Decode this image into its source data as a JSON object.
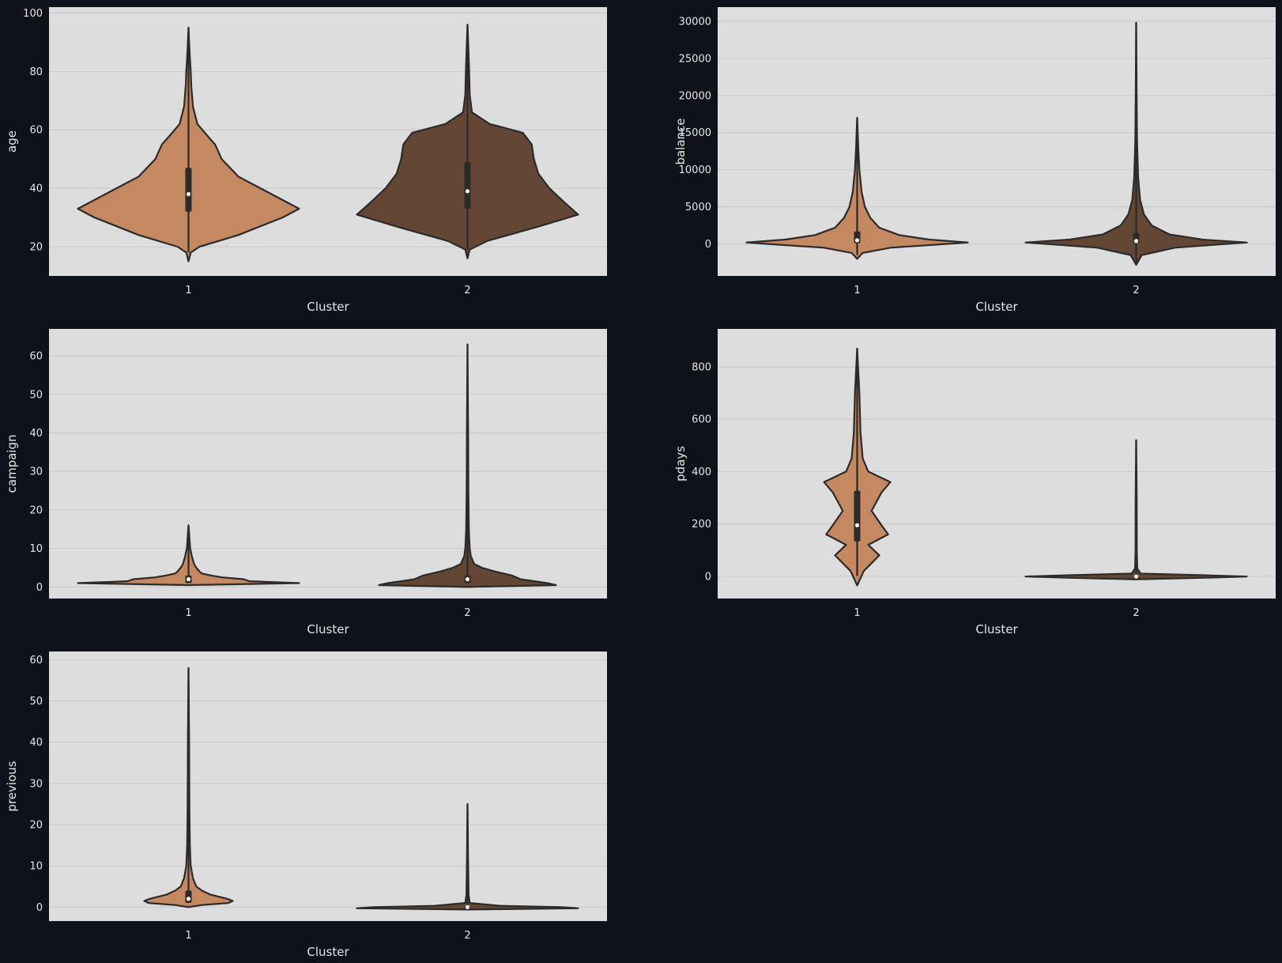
{
  "figure": {
    "background": "#0e121b",
    "panel_background": "#dddddd",
    "grid_color": "#cbcbcb",
    "outline_color": "#2b2b2b",
    "median_color": "#ffffff"
  },
  "chart_data": [
    {
      "type": "violin",
      "xlabel": "Cluster",
      "ylabel": "age",
      "categories": [
        "1",
        "2"
      ],
      "colors": [
        "#c58961",
        "#634634"
      ],
      "ylim": [
        10,
        102
      ],
      "yticks": [
        20,
        40,
        60,
        80,
        100
      ],
      "ytick_labels": [
        "20",
        "40",
        "60",
        "80",
        "100"
      ],
      "grid": true,
      "series": [
        {
          "category": "1",
          "min": 18,
          "q1": 32,
          "median": 38,
          "q3": 47,
          "whisker_high": 69,
          "max": 95,
          "profile": [
            [
              15,
              0
            ],
            [
              18,
              0.02
            ],
            [
              20,
              0.1
            ],
            [
              24,
              0.45
            ],
            [
              30,
              0.85
            ],
            [
              33,
              1.0
            ],
            [
              38,
              0.75
            ],
            [
              44,
              0.45
            ],
            [
              50,
              0.3
            ],
            [
              55,
              0.24
            ],
            [
              58,
              0.17
            ],
            [
              62,
              0.08
            ],
            [
              68,
              0.04
            ],
            [
              75,
              0.025
            ],
            [
              80,
              0.02
            ],
            [
              85,
              0.012
            ],
            [
              90,
              0.006
            ],
            [
              95,
              0
            ]
          ]
        },
        {
          "category": "2",
          "min": 19,
          "q1": 33,
          "median": 39,
          "q3": 49,
          "whisker_high": 70,
          "max": 96,
          "profile": [
            [
              16,
              0
            ],
            [
              19,
              0.02
            ],
            [
              22,
              0.18
            ],
            [
              27,
              0.65
            ],
            [
              31,
              1.0
            ],
            [
              35,
              0.88
            ],
            [
              40,
              0.74
            ],
            [
              45,
              0.64
            ],
            [
              50,
              0.6
            ],
            [
              55,
              0.58
            ],
            [
              59,
              0.5
            ],
            [
              62,
              0.2
            ],
            [
              66,
              0.04
            ],
            [
              72,
              0.02
            ],
            [
              80,
              0.015
            ],
            [
              88,
              0.008
            ],
            [
              96,
              0
            ]
          ]
        }
      ]
    },
    {
      "type": "violin",
      "xlabel": "Cluster",
      "ylabel": "balance",
      "categories": [
        "1",
        "2"
      ],
      "colors": [
        "#c58961",
        "#634634"
      ],
      "ylim": [
        -4300,
        31900
      ],
      "yticks": [
        0,
        5000,
        10000,
        15000,
        20000,
        25000,
        30000
      ],
      "ytick_labels": [
        "0",
        "5000",
        "10000",
        "15000",
        "20000",
        "25000",
        "30000"
      ],
      "grid": true,
      "series": [
        {
          "category": "1",
          "min": -1500,
          "q1": 100,
          "median": 500,
          "q3": 1700,
          "whisker_high": 4000,
          "max": 17000,
          "profile": [
            [
              -2000,
              0
            ],
            [
              -1200,
              0.05
            ],
            [
              -500,
              0.3
            ],
            [
              0,
              0.8
            ],
            [
              200,
              1.0
            ],
            [
              600,
              0.65
            ],
            [
              1200,
              0.38
            ],
            [
              2200,
              0.2
            ],
            [
              3500,
              0.12
            ],
            [
              5000,
              0.07
            ],
            [
              7000,
              0.04
            ],
            [
              10000,
              0.02
            ],
            [
              13000,
              0.01
            ],
            [
              17000,
              0
            ]
          ]
        },
        {
          "category": "2",
          "min": -2500,
          "q1": 100,
          "median": 400,
          "q3": 1500,
          "whisker_high": 3500,
          "max": 29800,
          "profile": [
            [
              -2800,
              0
            ],
            [
              -1500,
              0.05
            ],
            [
              -500,
              0.35
            ],
            [
              0,
              0.8
            ],
            [
              200,
              1.0
            ],
            [
              600,
              0.6
            ],
            [
              1300,
              0.3
            ],
            [
              2500,
              0.14
            ],
            [
              4000,
              0.07
            ],
            [
              6000,
              0.035
            ],
            [
              9000,
              0.018
            ],
            [
              14000,
              0.008
            ],
            [
              20000,
              0.004
            ],
            [
              29800,
              0
            ]
          ]
        }
      ]
    },
    {
      "type": "violin",
      "xlabel": "Cluster",
      "ylabel": "campaign",
      "categories": [
        "1",
        "2"
      ],
      "colors": [
        "#c58961",
        "#634634"
      ],
      "ylim": [
        -3,
        67
      ],
      "yticks": [
        0,
        10,
        20,
        30,
        40,
        50,
        60
      ],
      "ytick_labels": [
        "0",
        "10",
        "20",
        "30",
        "40",
        "50",
        "60"
      ],
      "grid": true,
      "series": [
        {
          "category": "1",
          "min": 1,
          "q1": 1,
          "median": 2,
          "q3": 3,
          "whisker_high": 5,
          "max": 16,
          "profile": [
            [
              0.5,
              0
            ],
            [
              1,
              1.0
            ],
            [
              1.5,
              0.55
            ],
            [
              2,
              0.5
            ],
            [
              2.5,
              0.3
            ],
            [
              3,
              0.2
            ],
            [
              3.5,
              0.12
            ],
            [
              4,
              0.1
            ],
            [
              5,
              0.07
            ],
            [
              6,
              0.05
            ],
            [
              7,
              0.04
            ],
            [
              8,
              0.03
            ],
            [
              10,
              0.015
            ],
            [
              13,
              0.008
            ],
            [
              16,
              0
            ]
          ]
        },
        {
          "category": "2",
          "min": 1,
          "q1": 1,
          "median": 2,
          "q3": 3,
          "whisker_high": 6,
          "max": 63,
          "profile": [
            [
              0,
              0
            ],
            [
              0.5,
              0.8
            ],
            [
              1,
              0.72
            ],
            [
              2,
              0.48
            ],
            [
              3,
              0.4
            ],
            [
              4,
              0.25
            ],
            [
              5,
              0.13
            ],
            [
              6,
              0.06
            ],
            [
              8,
              0.03
            ],
            [
              10,
              0.02
            ],
            [
              15,
              0.012
            ],
            [
              25,
              0.008
            ],
            [
              40,
              0.006
            ],
            [
              63,
              0
            ]
          ]
        }
      ]
    },
    {
      "type": "violin",
      "xlabel": "Cluster",
      "ylabel": "pdays",
      "categories": [
        "1",
        "2"
      ],
      "colors": [
        "#c58961",
        "#634634"
      ],
      "ylim": [
        -85,
        945
      ],
      "yticks": [
        0,
        200,
        400,
        600,
        800
      ],
      "ytick_labels": [
        "0",
        "200",
        "400",
        "600",
        "800"
      ],
      "grid": true,
      "series": [
        {
          "category": "1",
          "min": 1,
          "q1": 133,
          "median": 195,
          "q3": 327,
          "whisker_high": 600,
          "max": 870,
          "profile": [
            [
              -35,
              0
            ],
            [
              20,
              0.06
            ],
            [
              80,
              0.2
            ],
            [
              120,
              0.1
            ],
            [
              160,
              0.28
            ],
            [
              195,
              0.22
            ],
            [
              250,
              0.13
            ],
            [
              320,
              0.22
            ],
            [
              360,
              0.3
            ],
            [
              400,
              0.1
            ],
            [
              450,
              0.05
            ],
            [
              550,
              0.03
            ],
            [
              700,
              0.02
            ],
            [
              870,
              0
            ]
          ]
        },
        {
          "category": "2",
          "min": -1,
          "q1": -1,
          "median": -1,
          "q3": -1,
          "whisker_high": -1,
          "max": 520,
          "profile": [
            [
              -12,
              0
            ],
            [
              -6,
              0.6
            ],
            [
              -1,
              1.0
            ],
            [
              4,
              0.6
            ],
            [
              10,
              0.04
            ],
            [
              30,
              0.01
            ],
            [
              100,
              0.006
            ],
            [
              300,
              0.005
            ],
            [
              520,
              0
            ]
          ]
        }
      ]
    },
    {
      "type": "violin",
      "xlabel": "Cluster",
      "ylabel": "previous",
      "categories": [
        "1",
        "2"
      ],
      "colors": [
        "#c58961",
        "#634634"
      ],
      "ylim": [
        -3.4,
        62
      ],
      "yticks": [
        0,
        10,
        20,
        30,
        40,
        50,
        60
      ],
      "ytick_labels": [
        "0",
        "10",
        "20",
        "30",
        "40",
        "50",
        "60"
      ],
      "grid": true,
      "series": [
        {
          "category": "1",
          "min": 1,
          "q1": 1,
          "median": 2,
          "q3": 4,
          "whisker_high": 7,
          "max": 58,
          "profile": [
            [
              0,
              0
            ],
            [
              0.5,
              0.12
            ],
            [
              1,
              0.36
            ],
            [
              1.5,
              0.4
            ],
            [
              2,
              0.35
            ],
            [
              3,
              0.2
            ],
            [
              4,
              0.12
            ],
            [
              5,
              0.07
            ],
            [
              7,
              0.04
            ],
            [
              10,
              0.02
            ],
            [
              15,
              0.012
            ],
            [
              25,
              0.008
            ],
            [
              40,
              0.006
            ],
            [
              58,
              0
            ]
          ]
        },
        {
          "category": "2",
          "min": 0,
          "q1": 0,
          "median": 0,
          "q3": 0,
          "whisker_high": 0,
          "max": 25,
          "profile": [
            [
              -0.6,
              0
            ],
            [
              -0.3,
              1.0
            ],
            [
              0,
              0.85
            ],
            [
              0.3,
              0.3
            ],
            [
              1,
              0.02
            ],
            [
              3,
              0.01
            ],
            [
              10,
              0.006
            ],
            [
              25,
              0
            ]
          ]
        }
      ]
    }
  ]
}
